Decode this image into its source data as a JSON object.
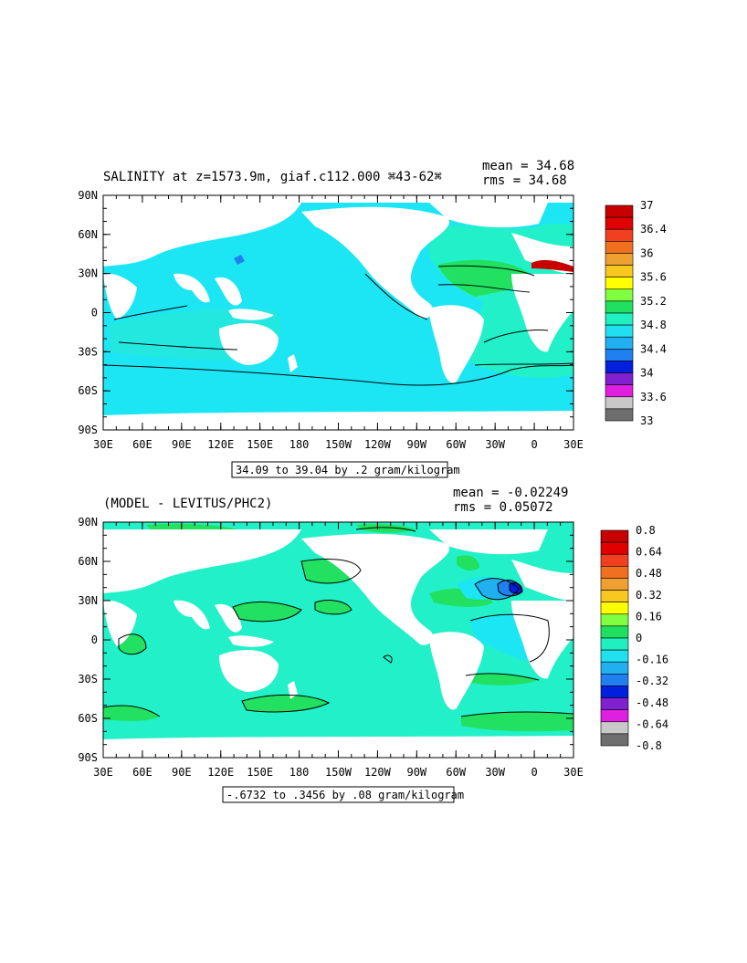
{
  "panels": [
    {
      "title": "SALINITY at z=1573.9m, giaf.c112.000 ⌘43-62⌘",
      "mean_label": "mean = 34.68",
      "rms_label": "rms = 34.68",
      "range_label": "34.09 to 39.04 by .2 gram/kilogram",
      "colorbar": {
        "labels": [
          "37",
          "36.4",
          "36",
          "35.6",
          "35.2",
          "34.8",
          "34.4",
          "34",
          "33.6",
          "33"
        ],
        "colors": [
          "#c80000",
          "#e00000",
          "#f04020",
          "#f07020",
          "#f0a030",
          "#f8c820",
          "#ffff00",
          "#80ff40",
          "#20e060",
          "#20f0c0",
          "#20e0f0",
          "#20b0f0",
          "#2080f0",
          "#0020e0",
          "#8020d0",
          "#e020e0",
          "#c8c8c8",
          "#6e6e6e"
        ]
      },
      "x_ticks": [
        "30E",
        "60E",
        "90E",
        "120E",
        "150E",
        "180",
        "150W",
        "120W",
        "90W",
        "60W",
        "30W",
        "0",
        "30E"
      ],
      "y_ticks": [
        "90N",
        "60N",
        "30N",
        "0",
        "30S",
        "60S",
        "90S"
      ]
    },
    {
      "title": "(MODEL - LEVITUS/PHC2)",
      "mean_label": "mean = -0.02249",
      "rms_label": "rms = 0.05072",
      "range_label": "-.6732 to .3456 by .08 gram/kilogram",
      "colorbar": {
        "labels": [
          "0.8",
          "0.64",
          "0.48",
          "0.32",
          "0.16",
          "0",
          "-0.16",
          "-0.32",
          "-0.48",
          "-0.64",
          "-0.8"
        ],
        "colors": [
          "#c80000",
          "#e00000",
          "#f04020",
          "#f07020",
          "#f0a030",
          "#f8c820",
          "#ffff00",
          "#80ff40",
          "#20e060",
          "#20f0c0",
          "#20e0f0",
          "#20b0f0",
          "#2080f0",
          "#0020e0",
          "#8020d0",
          "#e020e0",
          "#c8c8c8",
          "#6e6e6e"
        ]
      },
      "x_ticks": [
        "30E",
        "60E",
        "90E",
        "120E",
        "150E",
        "180",
        "150W",
        "120W",
        "90W",
        "60W",
        "30W",
        "0",
        "30E"
      ],
      "y_ticks": [
        "90N",
        "60N",
        "30N",
        "0",
        "30S",
        "60S",
        "90S"
      ]
    }
  ]
}
